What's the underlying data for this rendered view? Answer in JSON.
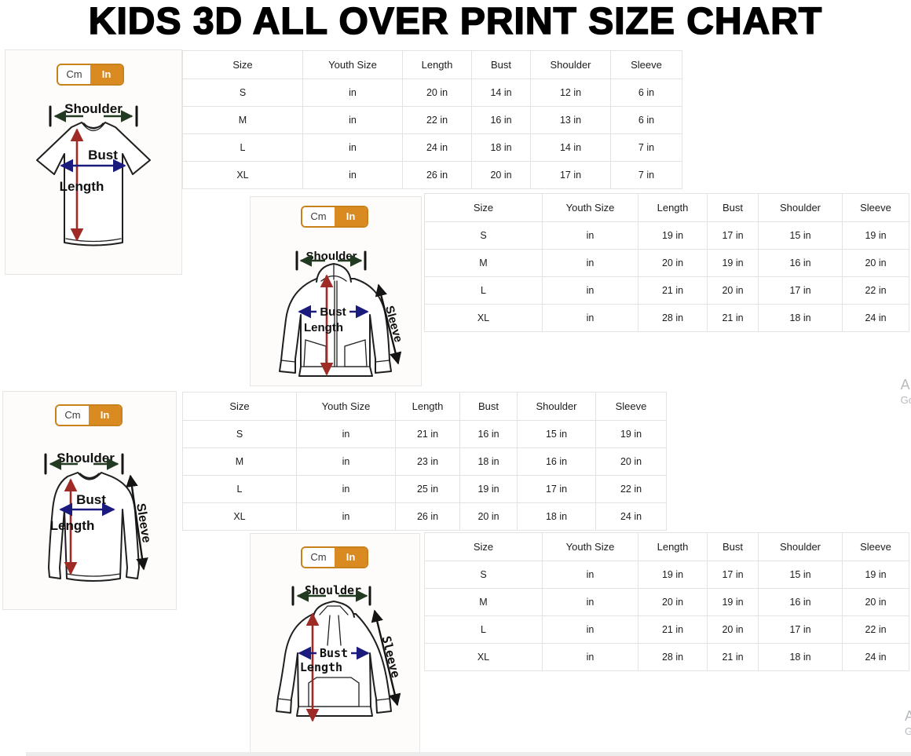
{
  "title": "KIDS 3D ALL OVER PRINT SIZE CHART",
  "unit_toggle": {
    "cm_label": "Cm",
    "in_label": "In",
    "active_color": "#d98a20"
  },
  "table_columns": [
    "Size",
    "Youth Size",
    "Length",
    "Bust",
    "Shoulder",
    "Sleeve"
  ],
  "diagram_labels": {
    "shoulder": "Shoulder",
    "bust": "Bust",
    "length": "Length",
    "sleeve": "Sleeve"
  },
  "sections": [
    {
      "garment": "t-shirt",
      "rows": [
        [
          "S",
          "in",
          "20 in",
          "14 in",
          "12 in",
          "6 in"
        ],
        [
          "M",
          "in",
          "22 in",
          "16 in",
          "13 in",
          "6 in"
        ],
        [
          "L",
          "in",
          "24 in",
          "18 in",
          "14 in",
          "7 in"
        ],
        [
          "XL",
          "in",
          "26 in",
          "20 in",
          "17 in",
          "7 in"
        ]
      ]
    },
    {
      "garment": "zip-hoodie",
      "rows": [
        [
          "S",
          "in",
          "19 in",
          "17 in",
          "15 in",
          "19 in"
        ],
        [
          "M",
          "in",
          "20 in",
          "19 in",
          "16 in",
          "20 in"
        ],
        [
          "L",
          "in",
          "21 in",
          "20 in",
          "17 in",
          "22 in"
        ],
        [
          "XL",
          "in",
          "28 in",
          "21 in",
          "18 in",
          "24 in"
        ]
      ]
    },
    {
      "garment": "long-sleeve-shirt",
      "rows": [
        [
          "S",
          "in",
          "21 in",
          "16 in",
          "15 in",
          "19 in"
        ],
        [
          "M",
          "in",
          "23 in",
          "18 in",
          "16 in",
          "20 in"
        ],
        [
          "L",
          "in",
          "25 in",
          "19 in",
          "17 in",
          "22 in"
        ],
        [
          "XL",
          "in",
          "26 in",
          "20 in",
          "18 in",
          "24 in"
        ]
      ]
    },
    {
      "garment": "pullover-hoodie",
      "rows": [
        [
          "S",
          "in",
          "19 in",
          "17 in",
          "15 in",
          "19 in"
        ],
        [
          "M",
          "in",
          "20 in",
          "19 in",
          "16 in",
          "20 in"
        ],
        [
          "L",
          "in",
          "21 in",
          "20 in",
          "17 in",
          "22 in"
        ],
        [
          "XL",
          "in",
          "28 in",
          "21 in",
          "18 in",
          "24 in"
        ]
      ]
    }
  ],
  "edge_marks": {
    "top": {
      "line1": "A",
      "line2": "Go"
    },
    "bottom": {
      "line1": "A",
      "line2": "G"
    }
  }
}
